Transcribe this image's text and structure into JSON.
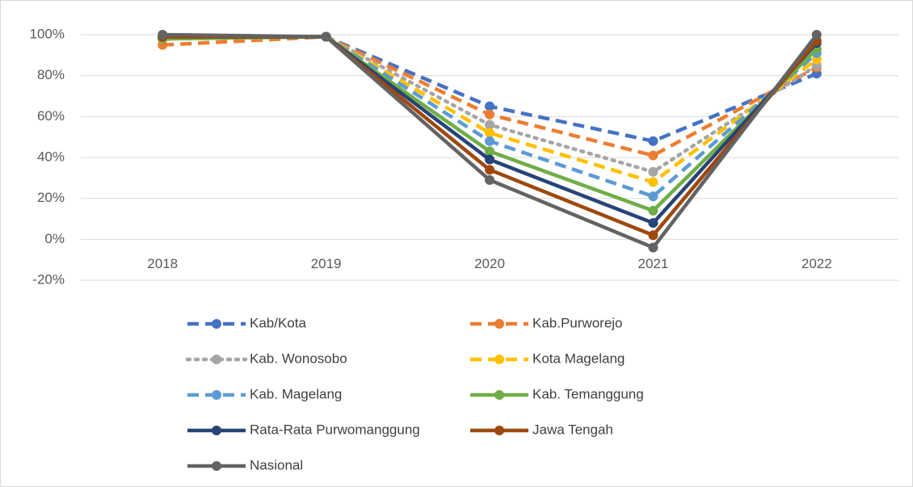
{
  "chart_data": {
    "type": "line",
    "categories": [
      "2018",
      "2019",
      "2020",
      "2021",
      "2022"
    ],
    "ylim": [
      -20,
      100
    ],
    "yticks": [
      {
        "value": -20,
        "label": "-20%"
      },
      {
        "value": 0,
        "label": "0%"
      },
      {
        "value": 20,
        "label": "20%"
      },
      {
        "value": 40,
        "label": "40%"
      },
      {
        "value": 60,
        "label": "60%"
      },
      {
        "value": 80,
        "label": "80%"
      },
      {
        "value": 100,
        "label": "100%"
      }
    ],
    "grid": true,
    "legend": "bottom",
    "series": [
      {
        "name": "Kab/Kota",
        "color": "#4472c4",
        "dash": "dashed",
        "values": [
          99,
          99,
          65,
          48,
          81
        ]
      },
      {
        "name": "Kab.Purworejo",
        "color": "#ed7d31",
        "dash": "dashed",
        "values": [
          95,
          99,
          61,
          41,
          84
        ]
      },
      {
        "name": "Kab. Wonosobo",
        "color": "#a5a5a5",
        "dash": "dotted",
        "values": [
          99,
          99,
          56,
          33,
          85
        ]
      },
      {
        "name": "Kota Magelang",
        "color": "#ffc000",
        "dash": "dashed",
        "values": [
          98,
          99,
          52,
          28,
          88
        ]
      },
      {
        "name": "Kab. Magelang",
        "color": "#5b9bd5",
        "dash": "dashed",
        "values": [
          98,
          99,
          48,
          21,
          91
        ]
      },
      {
        "name": "Kab. Temanggung",
        "color": "#70ad47",
        "dash": "solid",
        "values": [
          98,
          99,
          43,
          14,
          93
        ]
      },
      {
        "name": "Rata-Rata Purwomanggung",
        "color": "#264478",
        "dash": "solid",
        "values": [
          99,
          99,
          39,
          8,
          96
        ]
      },
      {
        "name": "Jawa Tengah",
        "color": "#9e480e",
        "dash": "solid",
        "values": [
          99,
          99,
          34,
          2,
          97
        ]
      },
      {
        "name": "Nasional",
        "color": "#636363",
        "dash": "solid",
        "values": [
          100,
          99,
          29,
          -4,
          100
        ]
      }
    ]
  }
}
